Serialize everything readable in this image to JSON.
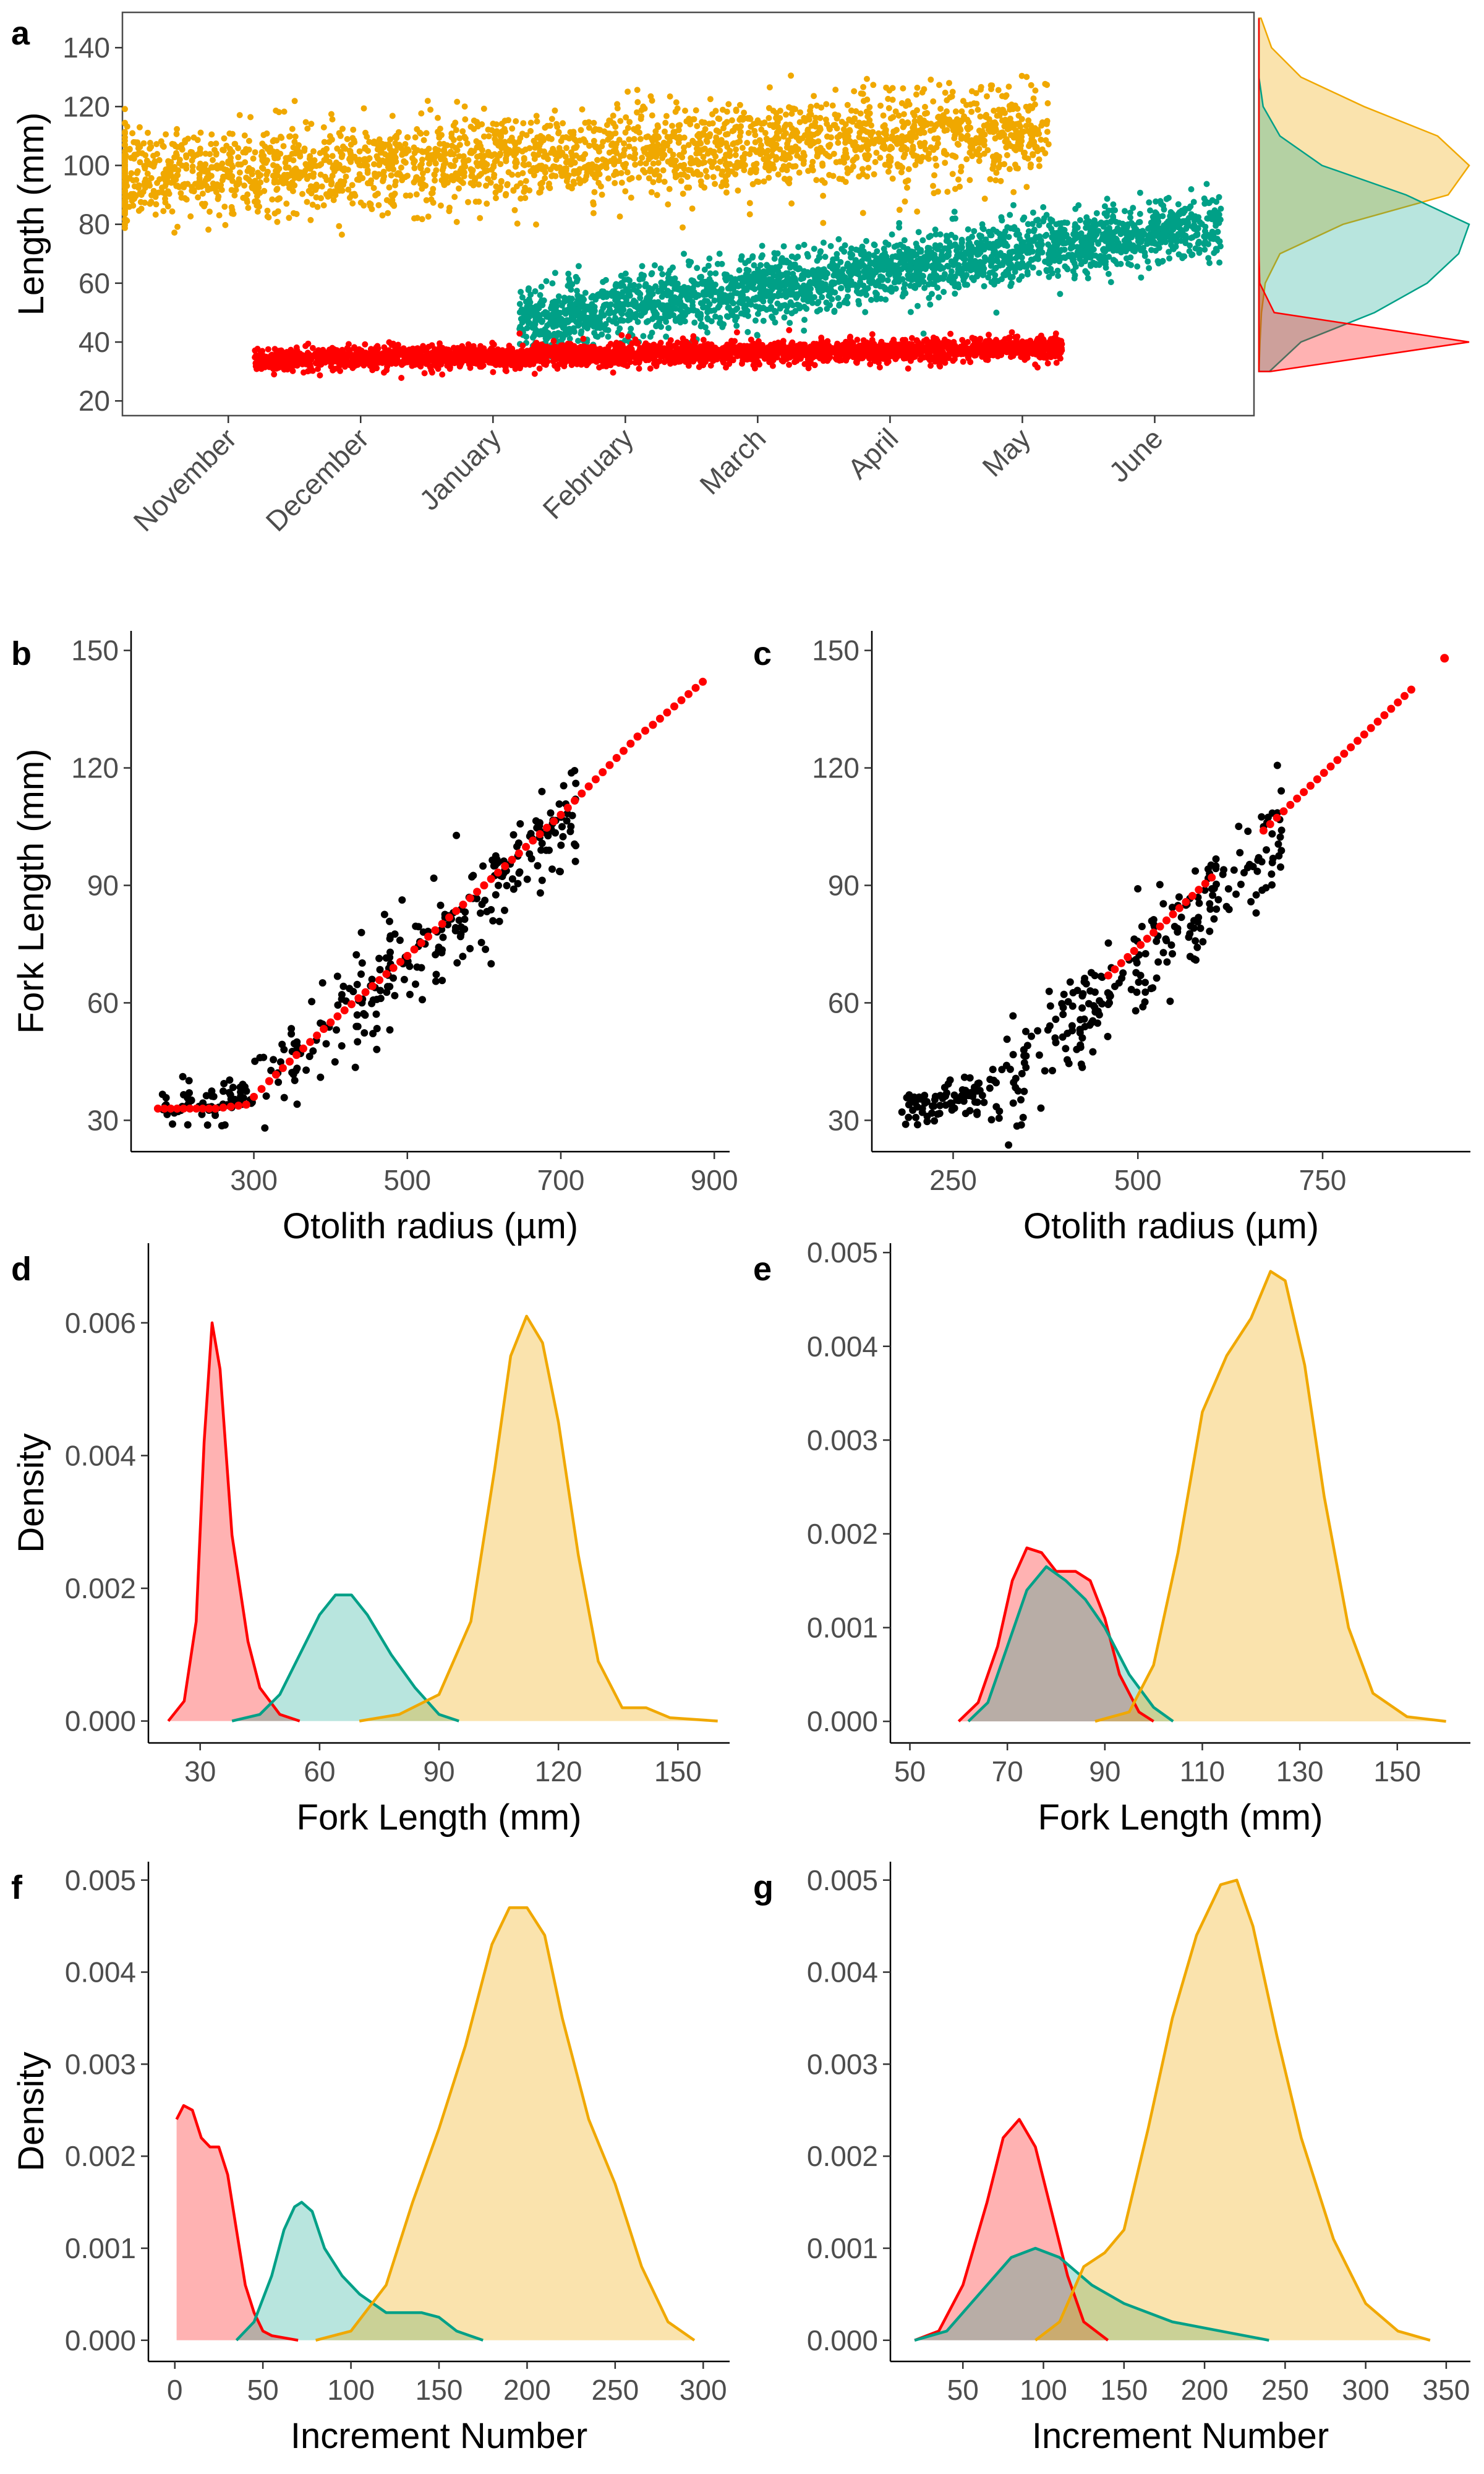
{
  "colors": {
    "red": "#ff0000",
    "green": "#00a087",
    "yellow": "#f0a800",
    "black": "#000000",
    "gray": "#4d4d4d"
  },
  "chart_data": [
    {
      "panel": "a",
      "type": "scatter",
      "ylabel": "Length (mm)",
      "yticks": [
        20,
        40,
        60,
        80,
        100,
        120,
        140
      ],
      "ylim": [
        15,
        152
      ],
      "xticks": [
        "November",
        "December",
        "January",
        "February",
        "March",
        "April",
        "May",
        "June"
      ],
      "xlim": [
        0.2,
        8.75
      ],
      "series": [
        {
          "color": "yellow",
          "x_range": [
            0.0,
            7.2
          ],
          "y_start": 95,
          "y_end": 112,
          "spread": 14,
          "n": 2500
        },
        {
          "color": "green",
          "x_range": [
            3.2,
            8.5
          ],
          "y_start": 47,
          "y_end": 80,
          "spread": 10,
          "n": 2500
        },
        {
          "color": "red",
          "x_range": [
            1.2,
            7.3
          ],
          "y_start": 34,
          "y_end": 38,
          "spread": 3.5,
          "n": 2800
        }
      ],
      "marginal_density": {
        "y": [
          30,
          40,
          50,
          60,
          70,
          80,
          90,
          100,
          110,
          120,
          130,
          140,
          150
        ],
        "yellow": [
          0.0,
          0.005,
          0.012,
          0.03,
          0.1,
          0.4,
          0.9,
          1.0,
          0.85,
          0.5,
          0.2,
          0.06,
          0.01
        ],
        "green": [
          0.05,
          0.2,
          0.55,
          0.8,
          0.95,
          1.0,
          0.7,
          0.3,
          0.1,
          0.02,
          0.0,
          0.0,
          0.0
        ],
        "red": [
          0.3,
          5.5,
          0.4,
          0.02,
          0.0,
          0.0,
          0.0,
          0.0,
          0.0,
          0.0,
          0.0,
          0.0,
          0.0
        ]
      }
    },
    {
      "panel": "b",
      "type": "scatter",
      "xlabel": "Otolith radius (µm)",
      "ylabel": "Fork Length (mm)",
      "xticks": [
        300,
        500,
        700,
        900
      ],
      "yticks": [
        30,
        60,
        90,
        120,
        150
      ],
      "xlim": [
        140,
        920
      ],
      "ylim": [
        22,
        155
      ],
      "observed_n": 320,
      "observed_x_range": [
        180,
        720
      ],
      "fit_points": [
        [
          175,
          33
        ],
        [
          200,
          33
        ],
        [
          250,
          33
        ],
        [
          290,
          34
        ],
        [
          320,
          40
        ],
        [
          400,
          55
        ],
        [
          500,
          72
        ],
        [
          600,
          90
        ],
        [
          700,
          108
        ],
        [
          800,
          128
        ],
        [
          820,
          131
        ],
        [
          885,
          142
        ]
      ]
    },
    {
      "panel": "c",
      "type": "scatter",
      "xlabel": "Otolith radius (µm)",
      "ylabel": "",
      "xticks": [
        250,
        500,
        750
      ],
      "yticks": [
        30,
        60,
        90,
        120,
        150
      ],
      "xlim": [
        140,
        950
      ],
      "ylim": [
        22,
        155
      ],
      "observed_n": 320,
      "observed_x_range": [
        180,
        700
      ],
      "fit_segments": [
        [
          [
            460,
            67
          ],
          [
            600,
            92
          ]
        ],
        [
          [
            670,
            104
          ],
          [
            870,
            140
          ]
        ],
        [
          [
            915,
            148
          ],
          [
            915,
            148
          ]
        ]
      ]
    },
    {
      "panel": "d",
      "type": "area",
      "xlabel": "Fork Length (mm)",
      "ylabel": "Density",
      "xticks": [
        30,
        60,
        90,
        120,
        150
      ],
      "yticks": [
        0.0,
        0.002,
        0.004,
        0.006
      ],
      "ytick_labels": [
        "0.000",
        "0.002",
        "0.004",
        "0.006"
      ],
      "xlim": [
        17,
        163
      ],
      "ylim": [
        -0.00033,
        0.0072
      ],
      "series": [
        {
          "color": "red",
          "points": [
            [
              22,
              0
            ],
            [
              26,
              0.0003
            ],
            [
              29,
              0.0015
            ],
            [
              31,
              0.0042
            ],
            [
              33,
              0.006
            ],
            [
              35,
              0.0053
            ],
            [
              38,
              0.0028
            ],
            [
              42,
              0.0012
            ],
            [
              45,
              0.0005
            ],
            [
              50,
              0.0001
            ],
            [
              55,
              0
            ]
          ]
        },
        {
          "color": "green",
          "points": [
            [
              38,
              0
            ],
            [
              45,
              0.0001
            ],
            [
              50,
              0.0004
            ],
            [
              55,
              0.001
            ],
            [
              60,
              0.0016
            ],
            [
              64,
              0.0019
            ],
            [
              68,
              0.0019
            ],
            [
              72,
              0.0016
            ],
            [
              78,
              0.001
            ],
            [
              84,
              0.0005
            ],
            [
              90,
              0.0001
            ],
            [
              95,
              0
            ]
          ]
        },
        {
          "color": "yellow",
          "points": [
            [
              70,
              0
            ],
            [
              80,
              0.0001
            ],
            [
              90,
              0.0004
            ],
            [
              98,
              0.0015
            ],
            [
              104,
              0.0038
            ],
            [
              108,
              0.0055
            ],
            [
              112,
              0.0061
            ],
            [
              116,
              0.0057
            ],
            [
              120,
              0.0045
            ],
            [
              125,
              0.0025
            ],
            [
              130,
              0.0009
            ],
            [
              136,
              0.0002
            ],
            [
              142,
              0.0002
            ],
            [
              148,
              5e-05
            ],
            [
              160,
              0
            ]
          ]
        }
      ]
    },
    {
      "panel": "e",
      "type": "area",
      "xlabel": "Fork Length (mm)",
      "ylabel": "",
      "xticks": [
        50,
        70,
        90,
        110,
        130,
        150
      ],
      "yticks": [
        0.0,
        0.001,
        0.002,
        0.003,
        0.004,
        0.005
      ],
      "ytick_labels": [
        "0.000",
        "0.001",
        "0.002",
        "0.003",
        "0.004",
        "0.005"
      ],
      "xlim": [
        46,
        165
      ],
      "ylim": [
        -0.00023,
        0.0051
      ],
      "series": [
        {
          "color": "red",
          "points": [
            [
              60,
              0
            ],
            [
              64,
              0.0002
            ],
            [
              68,
              0.0008
            ],
            [
              71,
              0.0015
            ],
            [
              74,
              0.00185
            ],
            [
              77,
              0.0018
            ],
            [
              80,
              0.0016
            ],
            [
              84,
              0.0016
            ],
            [
              87,
              0.0015
            ],
            [
              90,
              0.0011
            ],
            [
              93,
              0.0005
            ],
            [
              97,
              0.0001
            ],
            [
              100,
              0
            ]
          ]
        },
        {
          "color": "green",
          "points": [
            [
              62,
              0
            ],
            [
              66,
              0.0002
            ],
            [
              70,
              0.0008
            ],
            [
              74,
              0.0014
            ],
            [
              78,
              0.00165
            ],
            [
              82,
              0.0015
            ],
            [
              86,
              0.0013
            ],
            [
              90,
              0.001
            ],
            [
              95,
              0.0005
            ],
            [
              100,
              0.00015
            ],
            [
              104,
              0
            ]
          ]
        },
        {
          "color": "yellow",
          "points": [
            [
              88,
              0
            ],
            [
              95,
              0.0001
            ],
            [
              100,
              0.0006
            ],
            [
              105,
              0.0018
            ],
            [
              110,
              0.0033
            ],
            [
              115,
              0.0039
            ],
            [
              120,
              0.0043
            ],
            [
              124,
              0.0048
            ],
            [
              127,
              0.0047
            ],
            [
              131,
              0.0038
            ],
            [
              135,
              0.0024
            ],
            [
              140,
              0.001
            ],
            [
              145,
              0.0003
            ],
            [
              152,
              5e-05
            ],
            [
              160,
              0
            ]
          ]
        }
      ]
    },
    {
      "panel": "f",
      "type": "area",
      "xlabel": "Increment Number",
      "ylabel": "Density",
      "xticks": [
        0,
        50,
        100,
        150,
        200,
        250,
        300
      ],
      "yticks": [
        0.0,
        0.001,
        0.002,
        0.003,
        0.004,
        0.005
      ],
      "ytick_labels": [
        "0.000",
        "0.001",
        "0.002",
        "0.003",
        "0.004",
        "0.005"
      ],
      "xlim": [
        -15,
        315
      ],
      "ylim": [
        -0.00023,
        0.0052
      ],
      "series": [
        {
          "color": "red",
          "points": [
            [
              1,
              0.0024
            ],
            [
              5,
              0.00255
            ],
            [
              10,
              0.0025
            ],
            [
              15,
              0.0022
            ],
            [
              20,
              0.0021
            ],
            [
              25,
              0.0021
            ],
            [
              30,
              0.0018
            ],
            [
              35,
              0.0012
            ],
            [
              40,
              0.0006
            ],
            [
              45,
              0.0003
            ],
            [
              50,
              0.0001
            ],
            [
              55,
              5e-05
            ],
            [
              70,
              0
            ]
          ]
        },
        {
          "color": "green",
          "points": [
            [
              35,
              0
            ],
            [
              45,
              0.0002
            ],
            [
              55,
              0.0007
            ],
            [
              62,
              0.0012
            ],
            [
              68,
              0.00145
            ],
            [
              72,
              0.0015
            ],
            [
              78,
              0.0014
            ],
            [
              85,
              0.001
            ],
            [
              95,
              0.0007
            ],
            [
              105,
              0.0005
            ],
            [
              120,
              0.0003
            ],
            [
              140,
              0.0003
            ],
            [
              150,
              0.00025
            ],
            [
              160,
              0.0001
            ],
            [
              175,
              0
            ]
          ]
        },
        {
          "color": "yellow",
          "points": [
            [
              80,
              0
            ],
            [
              100,
              0.0001
            ],
            [
              120,
              0.0006
            ],
            [
              135,
              0.0015
            ],
            [
              150,
              0.0023
            ],
            [
              165,
              0.0032
            ],
            [
              180,
              0.0043
            ],
            [
              190,
              0.0047
            ],
            [
              200,
              0.0047
            ],
            [
              210,
              0.0044
            ],
            [
              220,
              0.0035
            ],
            [
              235,
              0.0024
            ],
            [
              250,
              0.0017
            ],
            [
              265,
              0.0008
            ],
            [
              280,
              0.0002
            ],
            [
              295,
              0
            ]
          ]
        }
      ]
    },
    {
      "panel": "g",
      "type": "area",
      "xlabel": "Increment Number",
      "ylabel": "",
      "xticks": [
        50,
        100,
        150,
        200,
        250,
        300,
        350
      ],
      "yticks": [
        0.0,
        0.001,
        0.002,
        0.003,
        0.004,
        0.005
      ],
      "ytick_labels": [
        "0.000",
        "0.001",
        "0.002",
        "0.003",
        "0.004",
        "0.005"
      ],
      "xlim": [
        5,
        365
      ],
      "ylim": [
        -0.00023,
        0.0052
      ],
      "series": [
        {
          "color": "red",
          "points": [
            [
              20,
              0
            ],
            [
              35,
              0.0001
            ],
            [
              50,
              0.0006
            ],
            [
              65,
              0.0015
            ],
            [
              75,
              0.0022
            ],
            [
              85,
              0.0024
            ],
            [
              95,
              0.0021
            ],
            [
              105,
              0.0014
            ],
            [
              115,
              0.0007
            ],
            [
              125,
              0.0002
            ],
            [
              140,
              0
            ]
          ]
        },
        {
          "color": "green",
          "points": [
            [
              20,
              0
            ],
            [
              40,
              0.0001
            ],
            [
              60,
              0.0005
            ],
            [
              80,
              0.0009
            ],
            [
              95,
              0.001
            ],
            [
              110,
              0.0009
            ],
            [
              130,
              0.0006
            ],
            [
              150,
              0.0004
            ],
            [
              180,
              0.0002
            ],
            [
              210,
              0.0001
            ],
            [
              240,
              0
            ]
          ]
        },
        {
          "color": "yellow",
          "points": [
            [
              95,
              0
            ],
            [
              110,
              0.0002
            ],
            [
              125,
              0.0008
            ],
            [
              138,
              0.00095
            ],
            [
              150,
              0.0012
            ],
            [
              165,
              0.0023
            ],
            [
              180,
              0.0035
            ],
            [
              195,
              0.0044
            ],
            [
              210,
              0.00495
            ],
            [
              220,
              0.005
            ],
            [
              230,
              0.0045
            ],
            [
              245,
              0.0033
            ],
            [
              260,
              0.0022
            ],
            [
              280,
              0.0011
            ],
            [
              300,
              0.0004
            ],
            [
              320,
              0.0001
            ],
            [
              340,
              0
            ]
          ]
        }
      ]
    }
  ]
}
